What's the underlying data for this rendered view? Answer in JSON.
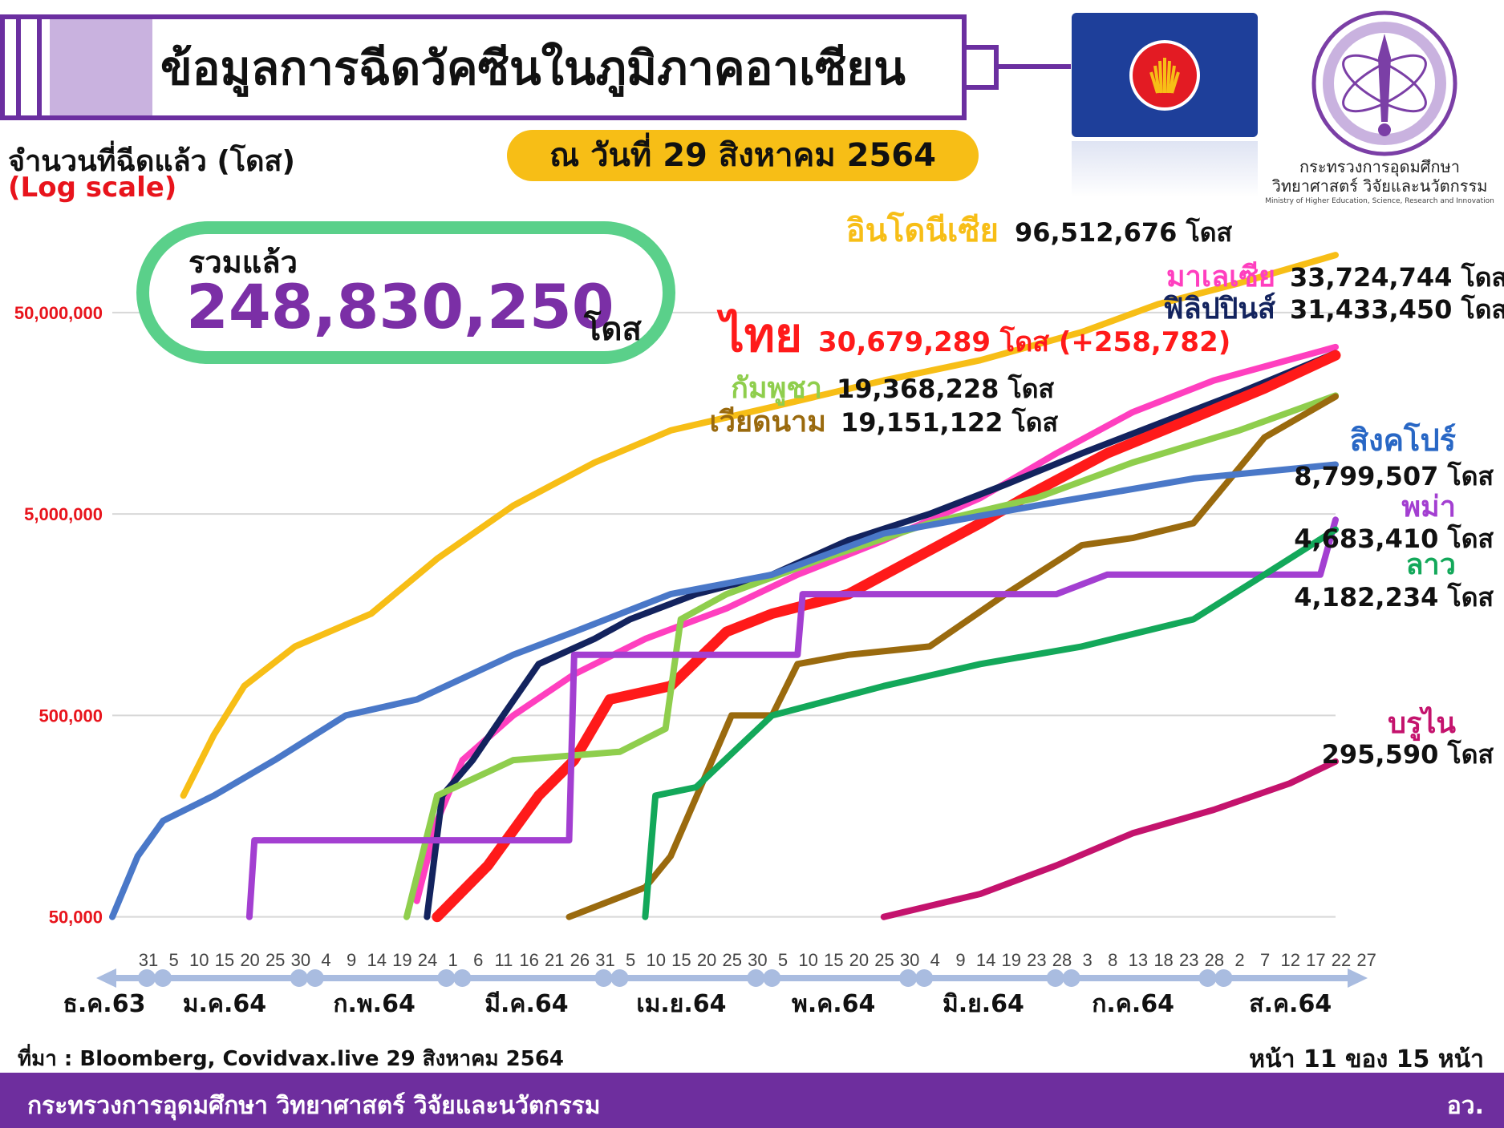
{
  "header": {
    "title": "ข้อมูลการฉีดวัคซีนในภูมิภาคอาเซียน",
    "date": "ณ วันที่ 29 สิงหาคม 2564"
  },
  "ministry": {
    "name_th": "กระทรวงการอุดมศึกษา วิทยาศาสตร์ วิจัยและนวัตกรรม",
    "name_en": "Ministry of Higher Education, Science, Research and Innovation"
  },
  "total": {
    "label": "รวมแล้ว",
    "value": "248,830,250",
    "unit": "โดส"
  },
  "footer": {
    "source": "ที่มา : Bloomberg, Covidvax.live 29 สิงหาคม 2564",
    "page": "หน้า 11 ของ 15 หน้า",
    "org": "กระทรวงการอุดมศึกษา วิทยาศาสตร์ วิจัยและนวัตกรรม",
    "unit_abbr": "อว."
  },
  "colors": {
    "purple": "#6b2fa0",
    "yellow": "#f7be16",
    "green_pill": "#5ad08a",
    "red": "#e8141c",
    "footer": "#6e2e9e"
  },
  "chart_data": {
    "type": "line",
    "title": "",
    "ylabel": "จำนวนที่ฉีดแล้ว (โดส)",
    "yscale_note": "(Log scale)",
    "yscale": "log",
    "ylim": [
      40000,
      150000000
    ],
    "yticks": [
      {
        "value": 50000,
        "label": "50,000"
      },
      {
        "value": 500000,
        "label": "500,000"
      },
      {
        "value": 5000000,
        "label": "5,000,000"
      },
      {
        "value": 50000000,
        "label": "50,000,000"
      }
    ],
    "xlim": [
      "2020-12-31",
      "2021-08-29"
    ],
    "xtick_days": [
      "31",
      "5",
      "10",
      "15",
      "20",
      "25",
      "30",
      "4",
      "9",
      "14",
      "19",
      "24",
      "1",
      "6",
      "11",
      "16",
      "21",
      "26",
      "31",
      "5",
      "10",
      "15",
      "20",
      "25",
      "30",
      "5",
      "10",
      "15",
      "20",
      "25",
      "30",
      "4",
      "9",
      "14",
      "19",
      "23",
      "28",
      "3",
      "8",
      "13",
      "18",
      "23",
      "28",
      "2",
      "7",
      "12",
      "17",
      "22",
      "27"
    ],
    "months": [
      "ธ.ค.63",
      "ม.ค.64",
      "ก.พ.64",
      "มี.ค.64",
      "เม.ย.64",
      "พ.ค.64",
      "มิ.ย.64",
      "ก.ค.64",
      "ส.ค.64"
    ],
    "grid": true,
    "series": [
      {
        "name": "อินโดนีเซีย",
        "value_label": "96,512,676 โดส",
        "color": "#f7be16",
        "points": [
          [
            "2021-01-14",
            200000
          ],
          [
            "2021-01-20",
            400000
          ],
          [
            "2021-01-26",
            700000
          ],
          [
            "2021-02-05",
            1100000
          ],
          [
            "2021-02-20",
            1600000
          ],
          [
            "2021-03-05",
            3000000
          ],
          [
            "2021-03-20",
            5500000
          ],
          [
            "2021-04-05",
            9000000
          ],
          [
            "2021-04-20",
            13000000
          ],
          [
            "2021-05-10",
            17000000
          ],
          [
            "2021-06-01",
            23000000
          ],
          [
            "2021-06-20",
            29000000
          ],
          [
            "2021-07-10",
            40000000
          ],
          [
            "2021-07-25",
            55000000
          ],
          [
            "2021-08-10",
            70000000
          ],
          [
            "2021-08-29",
            96512676
          ]
        ]
      },
      {
        "name": "มาเลเซีย",
        "value_label": "33,724,744 โดส",
        "color": "#ff3fbf",
        "points": [
          [
            "2021-03-01",
            60000
          ],
          [
            "2021-03-05",
            150000
          ],
          [
            "2021-03-10",
            300000
          ],
          [
            "2021-03-20",
            500000
          ],
          [
            "2021-04-01",
            800000
          ],
          [
            "2021-04-15",
            1200000
          ],
          [
            "2021-05-01",
            1700000
          ],
          [
            "2021-05-15",
            2500000
          ],
          [
            "2021-06-01",
            3700000
          ],
          [
            "2021-06-20",
            6000000
          ],
          [
            "2021-07-05",
            10000000
          ],
          [
            "2021-07-20",
            16000000
          ],
          [
            "2021-08-05",
            23000000
          ],
          [
            "2021-08-29",
            33724744
          ]
        ]
      },
      {
        "name": "ฟิลิปปินส์",
        "value_label": "31,433,450 โดส",
        "color": "#13235e",
        "points": [
          [
            "2021-03-03",
            50000
          ],
          [
            "2021-03-06",
            200000
          ],
          [
            "2021-03-12",
            300000
          ],
          [
            "2021-03-18",
            500000
          ],
          [
            "2021-03-25",
            900000
          ],
          [
            "2021-04-05",
            1200000
          ],
          [
            "2021-04-12",
            1500000
          ],
          [
            "2021-04-25",
            2000000
          ],
          [
            "2021-05-10",
            2500000
          ],
          [
            "2021-05-25",
            3700000
          ],
          [
            "2021-06-10",
            5000000
          ],
          [
            "2021-06-25",
            7000000
          ],
          [
            "2021-07-10",
            10000000
          ],
          [
            "2021-07-25",
            14000000
          ],
          [
            "2021-08-10",
            20000000
          ],
          [
            "2021-08-29",
            31433450
          ]
        ]
      },
      {
        "name": "ไทย",
        "value_label": "30,679,289 โดส (+258,782)",
        "color": "#ff1a1a",
        "points": [
          [
            "2021-03-05",
            50000
          ],
          [
            "2021-03-15",
            90000
          ],
          [
            "2021-03-25",
            200000
          ],
          [
            "2021-04-01",
            300000
          ],
          [
            "2021-04-08",
            600000
          ],
          [
            "2021-04-20",
            700000
          ],
          [
            "2021-05-01",
            1300000
          ],
          [
            "2021-05-10",
            1600000
          ],
          [
            "2021-05-25",
            2000000
          ],
          [
            "2021-06-07",
            3000000
          ],
          [
            "2021-06-20",
            4500000
          ],
          [
            "2021-07-01",
            6500000
          ],
          [
            "2021-07-15",
            10000000
          ],
          [
            "2021-08-01",
            15000000
          ],
          [
            "2021-08-15",
            21000000
          ],
          [
            "2021-08-29",
            30679289
          ]
        ]
      },
      {
        "name": "กัมพูชา",
        "value_label": "19,368,228 โดส",
        "color": "#8fce4d",
        "points": [
          [
            "2021-02-27",
            50000
          ],
          [
            "2021-03-05",
            200000
          ],
          [
            "2021-03-20",
            300000
          ],
          [
            "2021-04-10",
            330000
          ],
          [
            "2021-04-19",
            430000
          ],
          [
            "2021-04-22",
            1500000
          ],
          [
            "2021-05-01",
            2000000
          ],
          [
            "2021-05-20",
            3000000
          ],
          [
            "2021-06-10",
            4500000
          ],
          [
            "2021-07-01",
            6000000
          ],
          [
            "2021-07-20",
            9000000
          ],
          [
            "2021-08-10",
            13000000
          ],
          [
            "2021-08-29",
            19368228
          ]
        ]
      },
      {
        "name": "เวียดนาม",
        "value_label": "19,151,122 โดส",
        "color": "#9a6a0e",
        "points": [
          [
            "2021-03-31",
            50000
          ],
          [
            "2021-04-15",
            70000
          ],
          [
            "2021-04-20",
            100000
          ],
          [
            "2021-05-02",
            500000
          ],
          [
            "2021-05-10",
            500000
          ],
          [
            "2021-05-15",
            900000
          ],
          [
            "2021-05-25",
            1000000
          ],
          [
            "2021-06-10",
            1100000
          ],
          [
            "2021-06-25",
            2000000
          ],
          [
            "2021-07-10",
            3500000
          ],
          [
            "2021-07-20",
            3800000
          ],
          [
            "2021-08-01",
            4500000
          ],
          [
            "2021-08-15",
            12000000
          ],
          [
            "2021-08-29",
            19151122
          ]
        ]
      },
      {
        "name": "สิงคโปร์",
        "value_label": "8,799,507 โดส",
        "color": "#4a78c8",
        "points": [
          [
            "2020-12-31",
            50000
          ],
          [
            "2021-01-05",
            100000
          ],
          [
            "2021-01-10",
            150000
          ],
          [
            "2021-01-20",
            200000
          ],
          [
            "2021-02-01",
            300000
          ],
          [
            "2021-02-15",
            500000
          ],
          [
            "2021-03-01",
            600000
          ],
          [
            "2021-03-20",
            1000000
          ],
          [
            "2021-04-01",
            1300000
          ],
          [
            "2021-04-20",
            2000000
          ],
          [
            "2021-05-10",
            2500000
          ],
          [
            "2021-06-01",
            4000000
          ],
          [
            "2021-07-01",
            5500000
          ],
          [
            "2021-08-01",
            7500000
          ],
          [
            "2021-08-29",
            8799507
          ]
        ]
      },
      {
        "name": "พม่า",
        "value_label": "4,683,410 โดส",
        "color": "#a33fd1",
        "points": [
          [
            "2021-01-27",
            50000
          ],
          [
            "2021-01-28",
            120000
          ],
          [
            "2021-03-31",
            120000
          ],
          [
            "2021-04-01",
            1000000
          ],
          [
            "2021-05-15",
            1000000
          ],
          [
            "2021-05-16",
            2000000
          ],
          [
            "2021-06-10",
            2000000
          ],
          [
            "2021-07-05",
            2000000
          ],
          [
            "2021-07-15",
            2500000
          ],
          [
            "2021-08-26",
            2500000
          ],
          [
            "2021-08-29",
            4683410
          ]
        ]
      },
      {
        "name": "ลาว",
        "value_label": "4,182,234 โดส",
        "color": "#13a85a",
        "points": [
          [
            "2021-04-15",
            50000
          ],
          [
            "2021-04-17",
            200000
          ],
          [
            "2021-04-25",
            220000
          ],
          [
            "2021-05-10",
            500000
          ],
          [
            "2021-06-01",
            700000
          ],
          [
            "2021-06-20",
            900000
          ],
          [
            "2021-07-10",
            1100000
          ],
          [
            "2021-08-01",
            1500000
          ],
          [
            "2021-08-15",
            2500000
          ],
          [
            "2021-08-29",
            4182234
          ]
        ]
      },
      {
        "name": "บรูไน",
        "value_label": "295,590 โดส",
        "color": "#c4136d",
        "points": [
          [
            "2021-06-01",
            50000
          ],
          [
            "2021-06-20",
            65000
          ],
          [
            "2021-07-05",
            90000
          ],
          [
            "2021-07-20",
            130000
          ],
          [
            "2021-08-05",
            170000
          ],
          [
            "2021-08-20",
            230000
          ],
          [
            "2021-08-29",
            295590
          ]
        ]
      }
    ]
  }
}
